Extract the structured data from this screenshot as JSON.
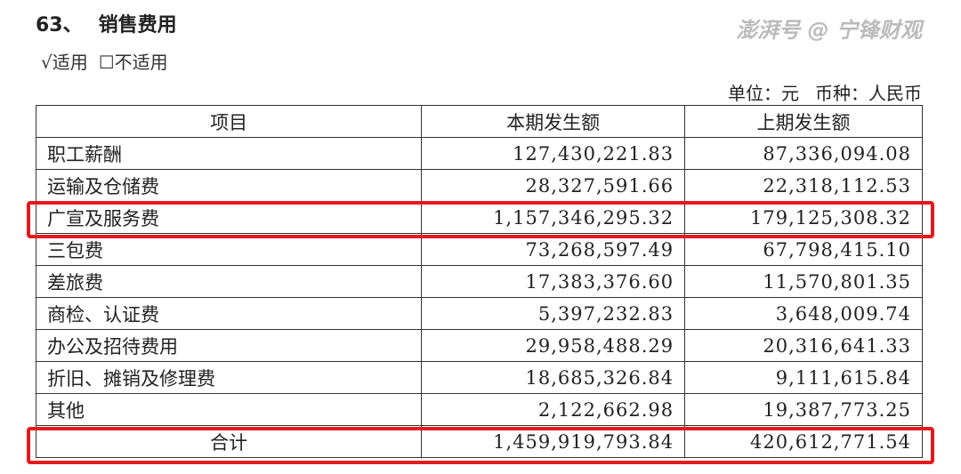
{
  "section": {
    "number": "63、",
    "title": "销售费用"
  },
  "applicability": {
    "applicable": "√适用",
    "not_applicable": "☐不适用"
  },
  "unit": {
    "unit_label": "单位：元",
    "currency_label": "币种：人民币"
  },
  "table": {
    "headers": [
      "项目",
      "本期发生额",
      "上期发生额"
    ],
    "rows": [
      {
        "item": "职工薪酬",
        "current": "127,430,221.83",
        "previous": "87,336,094.08"
      },
      {
        "item": "运输及仓储费",
        "current": "28,327,591.66",
        "previous": "22,318,112.53"
      },
      {
        "item": "广宣及服务费",
        "current": "1,157,346,295.32",
        "previous": "179,125,308.32"
      },
      {
        "item": "三包费",
        "current": "73,268,597.49",
        "previous": "67,798,415.10"
      },
      {
        "item": "差旅费",
        "current": "17,383,376.60",
        "previous": "11,570,801.35"
      },
      {
        "item": "商检、认证费",
        "current": "5,397,232.83",
        "previous": "3,648,009.74"
      },
      {
        "item": "办公及招待费用",
        "current": "29,958,488.29",
        "previous": "20,316,641.33"
      },
      {
        "item": "折旧、摊销及修理费",
        "current": "18,685,326.84",
        "previous": "9,111,615.84"
      },
      {
        "item": "其他",
        "current": "2,122,662.98",
        "previous": "19,387,773.25"
      }
    ],
    "total": {
      "item": "合计",
      "current": "1,459,919,793.84",
      "previous": "420,612,771.54"
    }
  },
  "highlight_color": "#e4191c",
  "watermark": "澎湃号 @ 宁锋财观"
}
